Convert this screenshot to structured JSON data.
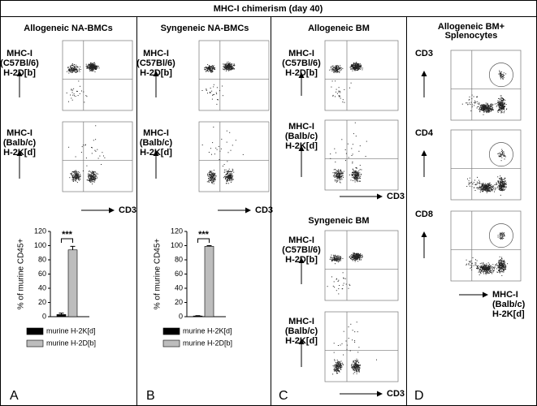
{
  "title": "MHC-I chimerism (day 40)",
  "panels": [
    {
      "letter": "A",
      "header": [
        "Allogeneic NA-BMCs"
      ],
      "plots": [
        {
          "ylabel": [
            "MHC-I",
            "(C57Bl/6)",
            "H-2D[b]"
          ]
        },
        {
          "ylabel": [
            "MHC-I",
            "(Balb/c)",
            "H-2K[d]"
          ]
        }
      ],
      "xlabel": [
        "CD3"
      ]
    },
    {
      "letter": "B",
      "header": [
        "Syngeneic NA-BMCs"
      ],
      "plots": [
        {
          "ylabel": [
            "MHC-I",
            "(C57Bl/6)",
            "H-2D[b]"
          ]
        },
        {
          "ylabel": [
            "MHC-I",
            "(Balb/c)",
            "H-2K[d]"
          ]
        }
      ],
      "xlabel": [
        "CD3"
      ]
    },
    {
      "letter": "C",
      "header": [
        "Allogeneic BM"
      ],
      "plots": [
        {
          "ylabel": [
            "MHC-I",
            "(C57Bl/6)",
            "H-2D[b]"
          ]
        },
        {
          "ylabel": [
            "MHC-I",
            "(Balb/c)",
            "H-2K[d]"
          ]
        }
      ],
      "xlabel": [
        "CD3"
      ],
      "subheader": [
        "Syngeneic BM"
      ],
      "subplots": [
        {
          "ylabel": [
            "MHC-I",
            "(C57Bl/6)",
            "H-2D[b]"
          ]
        },
        {
          "ylabel": [
            "MHC-I",
            "(Balb/c)",
            "H-2K[d]"
          ]
        }
      ],
      "subxlabel": [
        "CD3"
      ]
    },
    {
      "letter": "D",
      "header": [
        "Allogeneic BM+",
        "Splenocytes"
      ],
      "plots": [
        {
          "ylabel": [
            "CD3"
          ]
        },
        {
          "ylabel": [
            "CD4"
          ]
        },
        {
          "ylabel": [
            "CD8"
          ]
        }
      ],
      "xlabel": [
        "MHC-I",
        "(Balb/c)",
        "H-2K[d]"
      ]
    }
  ],
  "chart_data": [
    {
      "type": "bar",
      "ylabel": "% of murine CD45+",
      "ylim": [
        0,
        120
      ],
      "yticks": [
        0,
        20,
        40,
        60,
        80,
        100,
        120
      ],
      "categories": [
        null
      ],
      "annotation": "***",
      "series": [
        {
          "name": "murine H-2K[d]",
          "color": "#000000",
          "values": [
            3
          ],
          "errors": [
            2
          ]
        },
        {
          "name": "murine H-2D[b]",
          "color": "#bdbdbd",
          "values": [
            94
          ],
          "errors": [
            5
          ]
        }
      ]
    },
    {
      "type": "bar",
      "ylabel": "% of murine CD45+",
      "ylim": [
        0,
        120
      ],
      "yticks": [
        0,
        20,
        40,
        60,
        80,
        100,
        120
      ],
      "categories": [
        null
      ],
      "annotation": "***",
      "series": [
        {
          "name": "murine H-2K[d]",
          "color": "#000000",
          "values": [
            1
          ],
          "errors": [
            0.5
          ]
        },
        {
          "name": "murine H-2D[b]",
          "color": "#bdbdbd",
          "values": [
            99
          ],
          "errors": [
            1
          ]
        }
      ]
    }
  ]
}
